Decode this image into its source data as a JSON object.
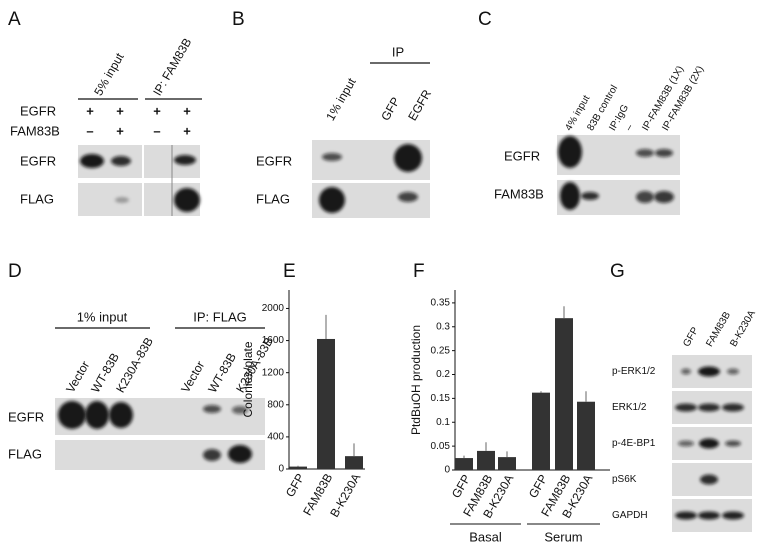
{
  "panels": {
    "A": {
      "label": "A",
      "columns": [
        "5% input",
        "IP: FAM83B"
      ],
      "rows": [
        {
          "name": "EGFR",
          "signs": [
            "+",
            "+",
            "+",
            "+"
          ]
        },
        {
          "name": "FAM83B",
          "signs": [
            "–",
            "+",
            "–",
            "+"
          ]
        }
      ],
      "blots": [
        "EGFR",
        "FLAG"
      ]
    },
    "B": {
      "label": "B",
      "group": "IP",
      "columns": [
        "1% input",
        "GFP",
        "EGFR"
      ],
      "blots": [
        "EGFR",
        "FLAG"
      ]
    },
    "C": {
      "label": "C",
      "columns": [
        "4% input",
        "83B control",
        "IP:IgG",
        "–",
        "IP-FAM83B (1X)",
        "IP-FAM83B (2X)"
      ],
      "blots": [
        "EGFR",
        "FAM83B"
      ]
    },
    "D": {
      "label": "D",
      "groups": [
        "1% input",
        "IP: FLAG"
      ],
      "columns": [
        "Vector",
        "WT-83B",
        "K230A-83B",
        "Vector",
        "WT-83B",
        "K230A-83B"
      ],
      "blots": [
        "EGFR",
        "FLAG"
      ]
    },
    "E": {
      "label": "E"
    },
    "F": {
      "label": "F"
    },
    "G": {
      "label": "G",
      "columns": [
        "GFP",
        "FAM83B",
        "B-K230A"
      ],
      "blots": [
        "p-ERK1/2",
        "ERK1/2",
        "p-4E-BP1",
        "pS6K",
        "GAPDH"
      ]
    }
  },
  "chart_data": [
    {
      "type": "bar",
      "ylabel": "Colonies/plate",
      "categories": [
        "GFP",
        "FAM83B",
        "B-K230A"
      ],
      "values": [
        30,
        1620,
        160
      ],
      "errors": [
        10,
        300,
        160
      ],
      "color": "#333333",
      "ylim": [
        0,
        2230
      ],
      "yticks": [
        0,
        400,
        800,
        1200,
        1600,
        2000
      ]
    },
    {
      "type": "grouped-bar",
      "ylabel": "PtdBuOH production",
      "color": "#333333",
      "groups": [
        {
          "name": "Basal",
          "categories": [
            "GFP",
            "FAM83B",
            "B-K230A"
          ],
          "values": [
            0.025,
            0.04,
            0.027
          ],
          "errors": [
            0.005,
            0.018,
            0.012
          ]
        },
        {
          "name": "Serum",
          "categories": [
            "GFP",
            "FAM83B",
            "B-K230A"
          ],
          "values": [
            0.162,
            0.318,
            0.143
          ],
          "errors": [
            0.003,
            0.025,
            0.022
          ]
        }
      ],
      "ylim": [
        0,
        0.377
      ],
      "yticks": [
        0,
        0.05,
        0.1,
        0.15,
        0.2,
        0.25,
        0.3,
        0.35
      ]
    }
  ]
}
